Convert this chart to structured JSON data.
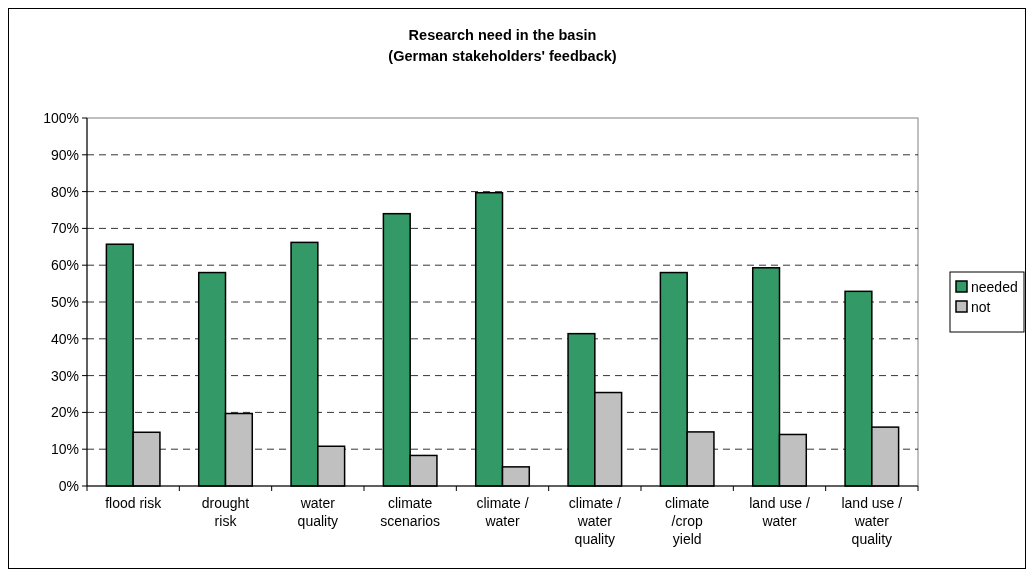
{
  "chart_data": {
    "type": "bar",
    "title": "Research need in the basin\n(German stakeholders' feedback)",
    "categories": [
      "flood risk",
      "drought risk",
      "water quality",
      "climate scenarios",
      "climate / water",
      "climate / water quality",
      "climate /crop yield",
      "land use / water",
      "land use / water quality"
    ],
    "series": [
      {
        "name": "needed",
        "color": "#339966",
        "values": [
          65.7,
          58.0,
          66.2,
          74.0,
          79.7,
          41.4,
          58.0,
          59.3,
          52.9
        ]
      },
      {
        "name": "not",
        "color": "#c0c0c0",
        "values": [
          14.6,
          19.7,
          10.8,
          8.3,
          5.2,
          25.4,
          14.7,
          14.0,
          16.0
        ]
      }
    ],
    "ylim": [
      0,
      100
    ],
    "yticks": [
      {
        "value": 0,
        "label": "0%"
      },
      {
        "value": 10,
        "label": "10%"
      },
      {
        "value": 20,
        "label": "20%"
      },
      {
        "value": 30,
        "label": "30%"
      },
      {
        "value": 40,
        "label": "40%"
      },
      {
        "value": 50,
        "label": "50%"
      },
      {
        "value": 60,
        "label": "60%"
      },
      {
        "value": 70,
        "label": "70%"
      },
      {
        "value": 80,
        "label": "80%"
      },
      {
        "value": 90,
        "label": "90%"
      },
      {
        "value": 100,
        "label": "100%"
      }
    ],
    "grid": "y",
    "legend": "right"
  }
}
